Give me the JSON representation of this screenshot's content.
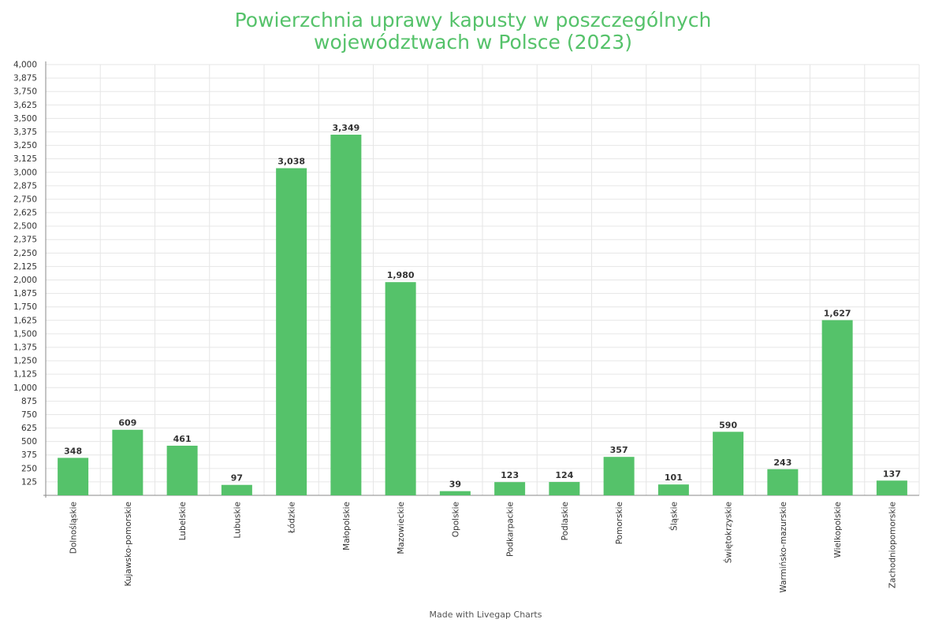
{
  "title_lines": [
    "Powierzchnia uprawy kapusty w poszczególnych",
    "województwach w Polsce (2023)"
  ],
  "footer": "Made with Livegap Charts",
  "colors": {
    "bar": "#55c26a",
    "title": "#55c26a",
    "grid": "#e6e6e6",
    "axis": "#888888",
    "text": "#333333"
  },
  "chart_data": {
    "type": "bar",
    "title": "Powierzchnia uprawy kapusty w poszczególnych województwach w Polsce (2023)",
    "xlabel": "",
    "ylabel": "",
    "ylim": [
      0,
      4000
    ],
    "ytick_step": 125,
    "ytick_labels": [
      "125",
      "250",
      "375",
      "500",
      "625",
      "750",
      "875",
      "1,000",
      "1,125",
      "1,250",
      "1,375",
      "1,500",
      "1,625",
      "1,750",
      "1,875",
      "2,000",
      "2,125",
      "2,250",
      "2,375",
      "2,500",
      "2,625",
      "2,750",
      "2,875",
      "3,000",
      "3,125",
      "3,250",
      "3,375",
      "3,500",
      "3,625",
      "3,750",
      "3,875",
      "4,000"
    ],
    "categories": [
      "Dolnośląskie",
      "Kujawsko-pomorskie",
      "Lubelskie",
      "Lubuskie",
      "Łódzkie",
      "Małopolskie",
      "Mazowieckie",
      "Opolskie",
      "Podkarpackie",
      "Podlaskie",
      "Pomorskie",
      "Śląskie",
      "Świętokrzyskie",
      "Warmińsko-mazurskie",
      "Wielkopolskie",
      "Zachodniopomorskie"
    ],
    "values": [
      348,
      609,
      461,
      97,
      3038,
      3349,
      1980,
      39,
      123,
      124,
      357,
      101,
      590,
      243,
      1627,
      137
    ],
    "value_labels": [
      "348",
      "609",
      "461",
      "97",
      "3,038",
      "3,349",
      "1,980",
      "39",
      "123",
      "124",
      "357",
      "101",
      "590",
      "243",
      "1,627",
      "137"
    ],
    "grid": true,
    "legend": "none"
  }
}
